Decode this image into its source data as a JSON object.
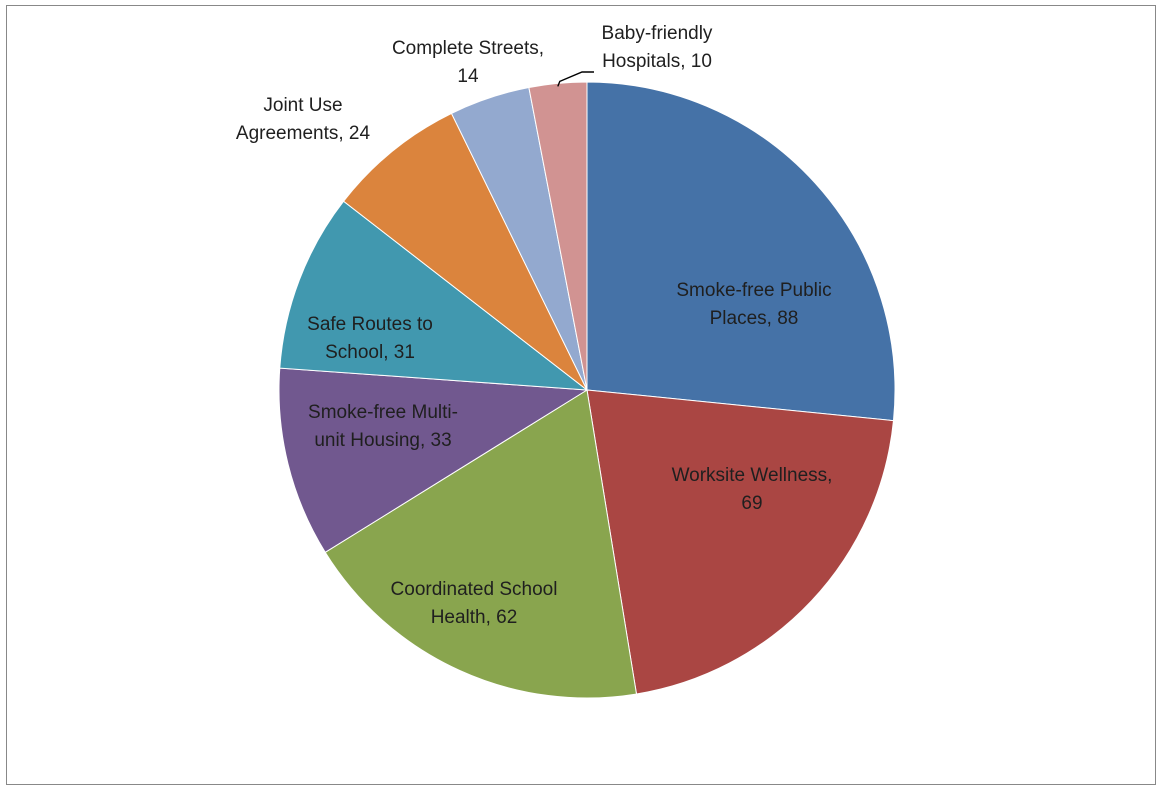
{
  "chart_data": {
    "type": "pie",
    "categories": [
      "Smoke-free Public Places",
      "Worksite Wellness",
      "Coordinated School Health",
      "Smoke-free Multi-unit Housing",
      "Safe Routes to School",
      "Joint Use Agreements",
      "Complete Streets",
      "Baby-friendly Hospitals"
    ],
    "values": [
      88,
      69,
      62,
      33,
      31,
      24,
      14,
      10
    ],
    "labels": [
      [
        "Smoke-free Public",
        "Places, 88"
      ],
      [
        "Worksite Wellness,",
        "69"
      ],
      [
        "Coordinated School",
        "Health, 62"
      ],
      [
        "Smoke-free Multi-",
        "unit Housing, 33"
      ],
      [
        "Safe Routes to",
        "School, 31"
      ],
      [
        "Joint Use",
        "Agreements, 24"
      ],
      [
        "Complete Streets,",
        "14"
      ],
      [
        "Baby-friendly",
        "Hospitals, 10"
      ]
    ],
    "colors": [
      "#4572A7",
      "#AA4643",
      "#89A54E",
      "#71588F",
      "#4198AF",
      "#DB843D",
      "#93A9CF",
      "#D19392"
    ],
    "start_angle": "12 o'clock",
    "direction": "clockwise",
    "legend": "none",
    "title": ""
  }
}
